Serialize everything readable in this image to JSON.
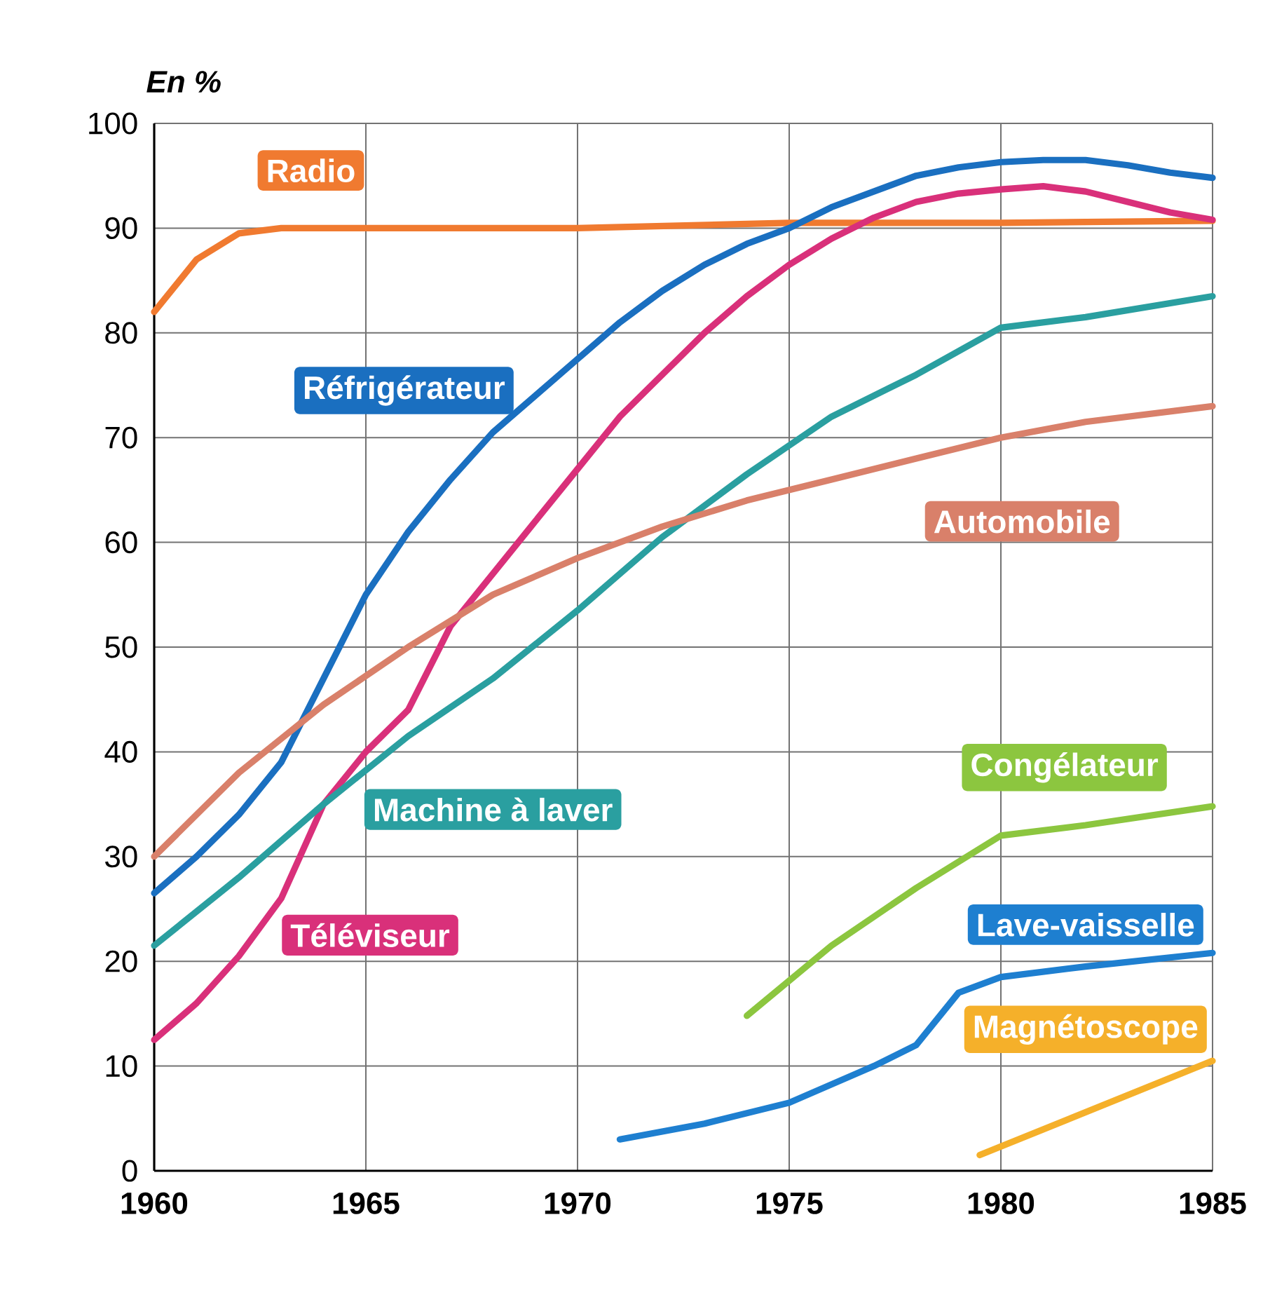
{
  "chart_data": {
    "type": "line",
    "ylabel": "En %",
    "xlim": [
      1960,
      1985
    ],
    "ylim": [
      0,
      100
    ],
    "xticks": [
      1960,
      1965,
      1970,
      1975,
      1980,
      1985
    ],
    "yticks": [
      0,
      10,
      20,
      30,
      40,
      50,
      60,
      70,
      80,
      90,
      100
    ],
    "grid": true,
    "marker": "none",
    "line_style": "solid",
    "series": [
      {
        "name": "Radio",
        "color": "#f07a30",
        "x": [
          1960,
          1961,
          1962,
          1963,
          1965,
          1970,
          1975,
          1980,
          1985
        ],
        "values": [
          82,
          87,
          89.5,
          90,
          90,
          90,
          90.5,
          90.5,
          90.7
        ]
      },
      {
        "name": "Réfrigérateur",
        "color": "#1a6fc0",
        "x": [
          1960,
          1961,
          1962,
          1963,
          1964,
          1965,
          1966,
          1967,
          1968,
          1969,
          1970,
          1971,
          1972,
          1973,
          1974,
          1975,
          1976,
          1977,
          1978,
          1979,
          1980,
          1981,
          1982,
          1983,
          1984,
          1985
        ],
        "values": [
          26.5,
          30,
          34,
          39,
          47,
          55,
          61,
          66,
          70.5,
          74,
          77.5,
          81,
          84,
          86.5,
          88.5,
          90,
          92,
          93.5,
          95,
          95.8,
          96.3,
          96.5,
          96.5,
          96,
          95.3,
          94.8
        ]
      },
      {
        "name": "Téléviseur",
        "color": "#d9307a",
        "x": [
          1960,
          1961,
          1962,
          1963,
          1964,
          1965,
          1966,
          1967,
          1968,
          1969,
          1970,
          1971,
          1972,
          1973,
          1974,
          1975,
          1976,
          1977,
          1978,
          1979,
          1980,
          1981,
          1982,
          1983,
          1984,
          1985
        ],
        "values": [
          12.5,
          16,
          20.5,
          26,
          35,
          40,
          44,
          52,
          57,
          62,
          67,
          72,
          76,
          80,
          83.5,
          86.5,
          89,
          91,
          92.5,
          93.3,
          93.7,
          94,
          93.5,
          92.5,
          91.5,
          90.8
        ]
      },
      {
        "name": "Machine à laver",
        "color": "#2a9fa0",
        "x": [
          1960,
          1962,
          1964,
          1966,
          1968,
          1970,
          1972,
          1974,
          1976,
          1978,
          1980,
          1982,
          1985
        ],
        "values": [
          21.5,
          28,
          35,
          41.5,
          47,
          53.5,
          60.5,
          66.5,
          72,
          76,
          80.5,
          81.5,
          83.5
        ]
      },
      {
        "name": "Automobile",
        "color": "#d9806a",
        "x": [
          1960,
          1962,
          1964,
          1966,
          1968,
          1970,
          1972,
          1974,
          1976,
          1978,
          1980,
          1982,
          1985
        ],
        "values": [
          30,
          38,
          44.5,
          50,
          55,
          58.5,
          61.5,
          64,
          66,
          68,
          70,
          71.5,
          73
        ]
      },
      {
        "name": "Congélateur",
        "color": "#8cc63f",
        "x": [
          1974,
          1976,
          1978,
          1980,
          1982,
          1985
        ],
        "values": [
          14.8,
          21.5,
          27,
          32,
          33,
          34.8
        ]
      },
      {
        "name": "Lave-vaisselle",
        "color": "#1e7fd0",
        "x": [
          1971,
          1973,
          1975,
          1977,
          1978,
          1979,
          1980,
          1982,
          1985
        ],
        "values": [
          3,
          4.5,
          6.5,
          10,
          12,
          17,
          18.5,
          19.5,
          20.8
        ]
      },
      {
        "name": "Magnétoscope",
        "color": "#f5b02a",
        "x": [
          1979.5,
          1985
        ],
        "values": [
          1.5,
          10.5
        ]
      }
    ]
  }
}
